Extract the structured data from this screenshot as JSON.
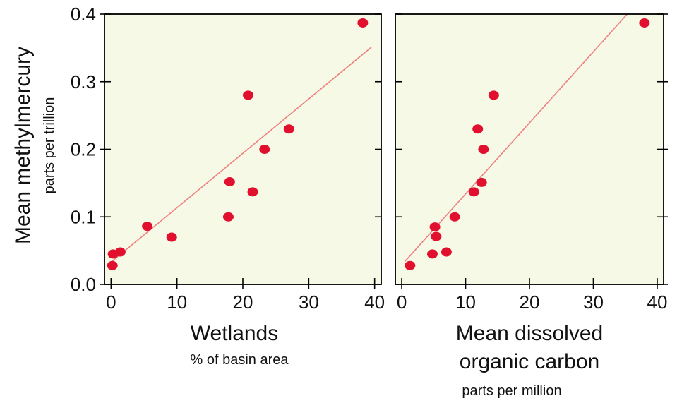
{
  "y_axis": {
    "label": "Mean methylmercury",
    "unit": "parts per trillion"
  },
  "colors": {
    "plot_background": "#f5f9e6",
    "point": "#e0102e",
    "fit_line": "#f08080",
    "frame": "#000000"
  },
  "chart_data": [
    {
      "type": "scatter",
      "xlabel": "Wetlands",
      "xlabel_unit": "% of basin area",
      "ylabel": "Mean methylmercury",
      "ylabel_unit": "parts per trillion",
      "xlim": [
        -1,
        41
      ],
      "ylim": [
        0,
        0.4
      ],
      "x_ticks": [
        0,
        10,
        20,
        30,
        40
      ],
      "y_ticks": [
        0.0,
        0.1,
        0.2,
        0.3,
        0.4
      ],
      "x_tick_labels": [
        "0",
        "10",
        "20",
        "30",
        "40"
      ],
      "y_tick_labels": [
        "0.0",
        "0.1",
        "0.2",
        "0.3",
        "0.4"
      ],
      "grid": false,
      "points": [
        {
          "x": 0.2,
          "y": 0.028
        },
        {
          "x": 0.3,
          "y": 0.045
        },
        {
          "x": 1.4,
          "y": 0.048
        },
        {
          "x": 5.5,
          "y": 0.086
        },
        {
          "x": 9.2,
          "y": 0.07
        },
        {
          "x": 18.0,
          "y": 0.152
        },
        {
          "x": 17.8,
          "y": 0.1
        },
        {
          "x": 21.5,
          "y": 0.137
        },
        {
          "x": 20.8,
          "y": 0.28
        },
        {
          "x": 23.3,
          "y": 0.2
        },
        {
          "x": 27.0,
          "y": 0.23
        },
        {
          "x": 38.2,
          "y": 0.387
        }
      ],
      "fit_line": {
        "x": [
          0,
          39.5
        ],
        "y": [
          0.033,
          0.351
        ]
      }
    },
    {
      "type": "scatter",
      "xlabel": "Mean dissolved organic carbon",
      "xlabel_lines": [
        "Mean dissolved",
        "organic carbon"
      ],
      "xlabel_unit": "parts per million",
      "xlim": [
        -1,
        41
      ],
      "ylim": [
        0,
        0.4
      ],
      "x_ticks": [
        0,
        10,
        20,
        30,
        40
      ],
      "x_tick_labels": [
        "0",
        "10",
        "20",
        "30",
        "40"
      ],
      "grid": false,
      "points": [
        {
          "x": 1.3,
          "y": 0.028
        },
        {
          "x": 4.8,
          "y": 0.045
        },
        {
          "x": 5.2,
          "y": 0.085
        },
        {
          "x": 5.4,
          "y": 0.071
        },
        {
          "x": 7.0,
          "y": 0.048
        },
        {
          "x": 8.3,
          "y": 0.1
        },
        {
          "x": 11.3,
          "y": 0.137
        },
        {
          "x": 12.5,
          "y": 0.151
        },
        {
          "x": 11.9,
          "y": 0.23
        },
        {
          "x": 12.8,
          "y": 0.2
        },
        {
          "x": 14.4,
          "y": 0.28
        },
        {
          "x": 38.0,
          "y": 0.387
        }
      ],
      "fit_line": {
        "x": [
          0.5,
          35.3
        ],
        "y": [
          0.034,
          0.4
        ]
      }
    }
  ]
}
